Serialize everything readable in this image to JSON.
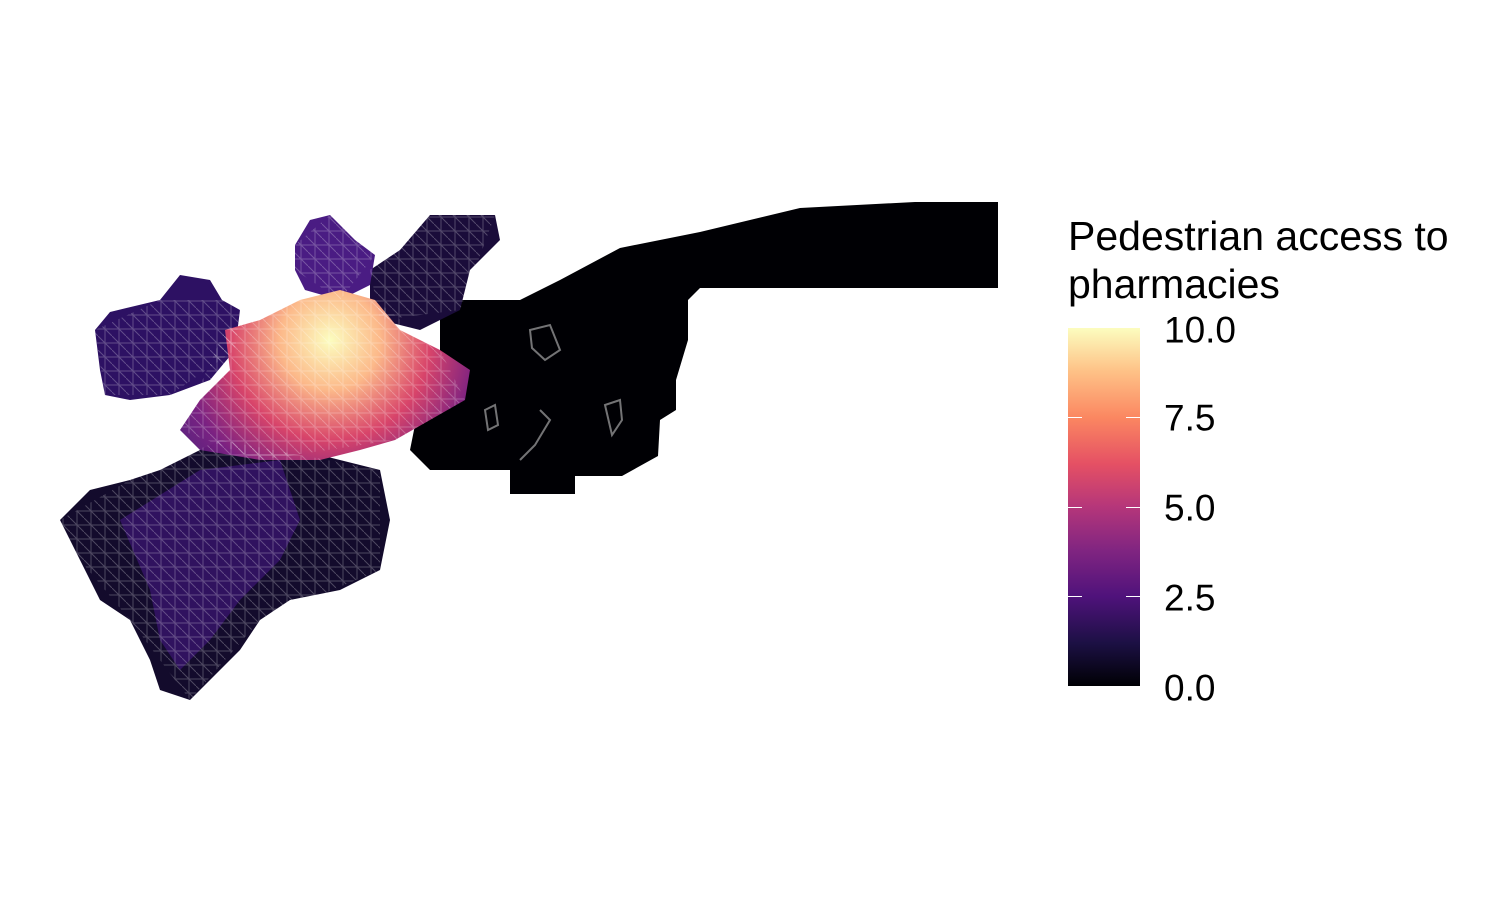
{
  "map": {
    "type": "raster-choropleth",
    "colormap": "magma",
    "description_layer": "street network overlay in white"
  },
  "legend": {
    "title_lines": [
      "Pedestrian access to",
      "pharmacies"
    ],
    "range": [
      0.0,
      10.0
    ],
    "ticks": [
      "10.0",
      "7.5",
      "5.0",
      "2.5",
      "0.0"
    ]
  }
}
